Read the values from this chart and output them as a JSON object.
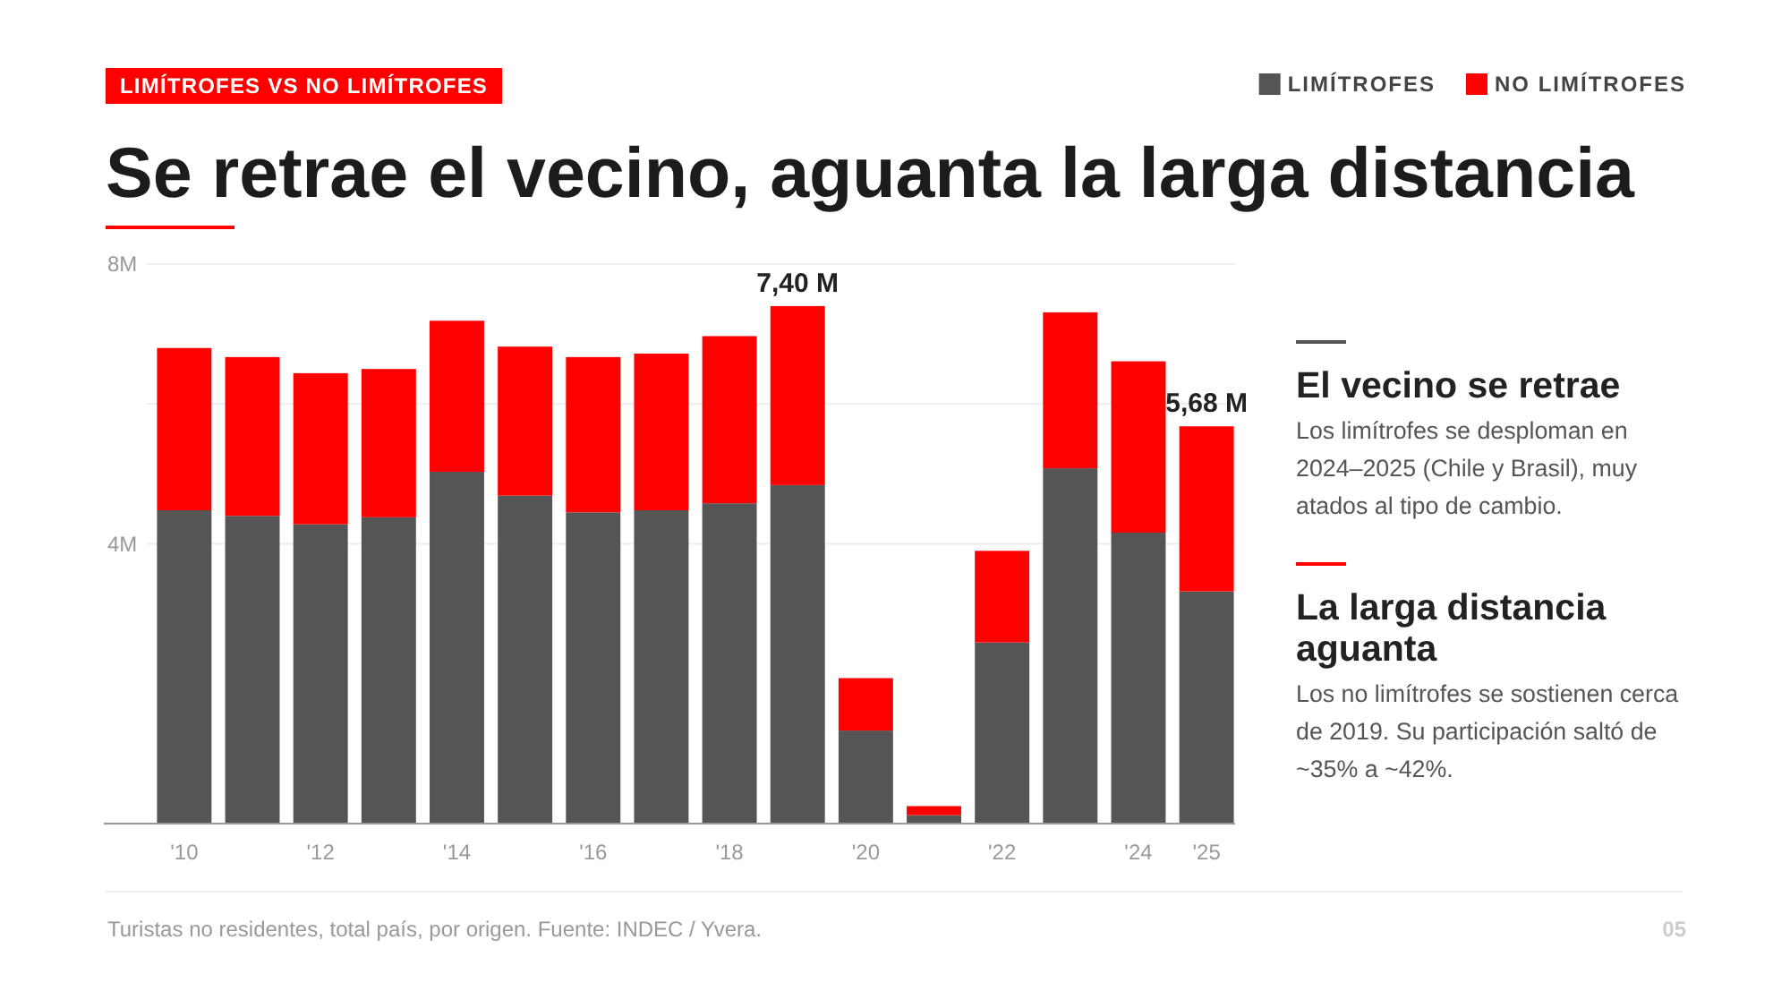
{
  "chart_data": {
    "type": "bar",
    "stacked": true,
    "title": "Se retrae el vecino, aguanta la larga distancia",
    "annotations": [
      "LIMÍTROFES VS NO LIMÍTROFES",
      "El vecino se retrae",
      "Los limítrofes se desploman en 2024–2025 (Chile y Brasil), muy atados al tipo de cambio.",
      "La larga distancia aguanta",
      "Los no limítrofes se sostienen cerca de 2019. Su participación saltó de ~35% a ~42%.",
      "Turistas no residentes, total país, por origen. Fuente: INDEC / Yvera.",
      "05"
    ],
    "categories": [
      "'10",
      null,
      "'12",
      null,
      "'14",
      null,
      "'16",
      null,
      "'18",
      null,
      "'20",
      null,
      "'22",
      null,
      "'24",
      "'25"
    ],
    "series": [
      {
        "name": "LIMÍTROFES",
        "color": "#555555",
        "values": [
          4.48,
          4.4,
          4.28,
          4.38,
          5.03,
          4.69,
          4.45,
          4.48,
          4.58,
          4.84,
          1.33,
          0.12,
          2.59,
          5.08,
          4.16,
          3.32
        ]
      },
      {
        "name": "NO LIMÍTROFES",
        "color": "#ff0000",
        "values": [
          2.32,
          2.27,
          2.16,
          2.12,
          2.16,
          2.13,
          2.22,
          2.24,
          2.39,
          2.56,
          0.75,
          0.13,
          1.31,
          2.23,
          2.45,
          2.36
        ]
      }
    ],
    "totals": [
      null,
      null,
      null,
      null,
      null,
      null,
      null,
      null,
      null,
      "7,40 M",
      null,
      null,
      null,
      null,
      null,
      "5,68 M"
    ],
    "ylim": [
      0,
      8
    ],
    "yticks": [
      {
        "value": 4,
        "label": "4M"
      },
      {
        "value": 6,
        "label": null
      },
      {
        "value": 8,
        "label": "8M"
      }
    ],
    "grid": "y",
    "legend": "top right"
  }
}
